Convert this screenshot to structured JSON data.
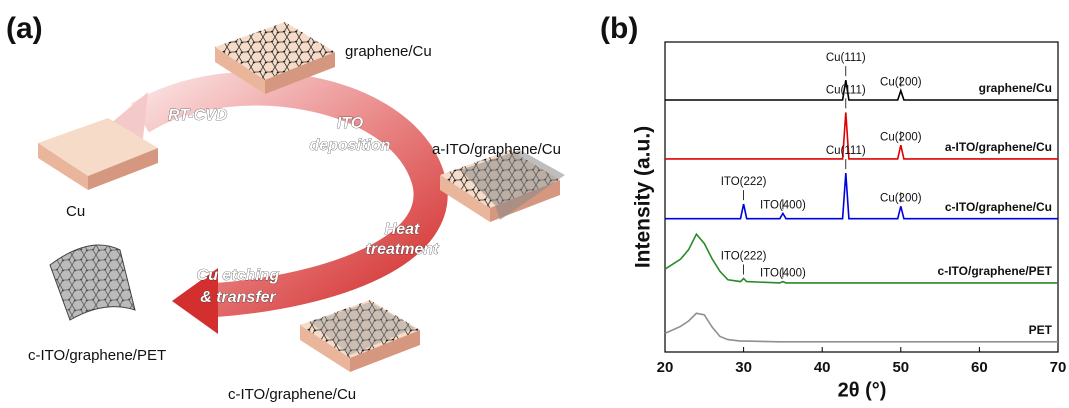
{
  "panels": {
    "a": "(a)",
    "b": "(b)"
  },
  "diagram": {
    "samples": {
      "cu": "Cu",
      "graphene_cu": "graphene/Cu",
      "a_ito": "a-ITO/graphene/Cu",
      "c_ito_cu": "c-ITO/graphene/Cu",
      "c_ito_pet": "c-ITO/graphene/PET"
    },
    "steps": {
      "rt_cvd": [
        "RT-CVD"
      ],
      "ito_deposition": [
        "ITO",
        "deposition"
      ],
      "heat": [
        "Heat",
        "treatment"
      ],
      "transfer": [
        "Cu etching",
        "& transfer"
      ]
    }
  },
  "chart_data": {
    "type": "line",
    "xlabel": "2θ (°)",
    "ylabel": "Intensity (a.u.)",
    "x": [
      20,
      22,
      23,
      24,
      25,
      26,
      27,
      28,
      29.6,
      30,
      30.4,
      34.6,
      35,
      35.4,
      42.6,
      43,
      43.4,
      49.6,
      50,
      50.4,
      60,
      70
    ],
    "xlim": [
      20,
      70
    ],
    "xticks": [
      20,
      30,
      40,
      50,
      60,
      70
    ],
    "ylim": [
      0,
      100
    ],
    "series": [
      {
        "name": "graphene/Cu",
        "color": "#000000",
        "values": [
          81.3,
          81.3,
          81.3,
          81.3,
          81.3,
          81.3,
          81.3,
          81.3,
          81.3,
          81.3,
          81.3,
          81.3,
          81.3,
          81.3,
          81.3,
          87.7,
          81.3,
          81.3,
          84.3,
          81.3,
          81.3,
          81.3
        ],
        "annotations": [
          {
            "label": "Cu(111)",
            "x": 43
          },
          {
            "label": "Cu(200)",
            "x": 50
          }
        ]
      },
      {
        "name": "a-ITO/graphene/Cu",
        "color": "#e00000",
        "values": [
          62.3,
          62.3,
          62.3,
          62.3,
          62.3,
          62.3,
          62.3,
          62.3,
          62.3,
          62.3,
          62.3,
          62.3,
          62.3,
          62.3,
          62.3,
          77.3,
          62.3,
          62.3,
          66.7,
          62.3,
          62.3,
          62.3
        ],
        "annotations": [
          {
            "label": "Cu(111)",
            "x": 43
          },
          {
            "label": "Cu(200)",
            "x": 50
          }
        ]
      },
      {
        "name": "c-ITO/graphene/Cu",
        "color": "#0000e0",
        "values": [
          43,
          43,
          43,
          43,
          43,
          43,
          43,
          43,
          43,
          47.7,
          43,
          43,
          44.7,
          43,
          43,
          57.7,
          43,
          43,
          47,
          43,
          43,
          43
        ],
        "annotations": [
          {
            "label": "ITO(222)",
            "x": 30
          },
          {
            "label": "ITO(400)",
            "x": 35
          },
          {
            "label": "Cu(111)",
            "x": 43
          },
          {
            "label": "Cu(200)",
            "x": 50
          }
        ]
      },
      {
        "name": "c-ITO/graphene/PET",
        "color": "#2a8a2a",
        "values": [
          26.7,
          30,
          33,
          38,
          35,
          30,
          26,
          23.3,
          22.7,
          23.7,
          22.7,
          22.3,
          22.7,
          22.3,
          22.3,
          22.3,
          22.3,
          22.3,
          22.3,
          22.3,
          22.3,
          22.3
        ],
        "annotations": [
          {
            "label": "ITO(222)",
            "x": 30
          },
          {
            "label": "ITO(400)",
            "x": 35
          }
        ]
      },
      {
        "name": "PET",
        "color": "#909090",
        "values": [
          6,
          8.3,
          10,
          12.5,
          12,
          8,
          5,
          4,
          3.5,
          3.5,
          3.5,
          3.3,
          3.3,
          3.3,
          3.3,
          3.3,
          3.3,
          3.3,
          3.3,
          3.3,
          3.3,
          3.3
        ],
        "annotations": []
      }
    ]
  }
}
